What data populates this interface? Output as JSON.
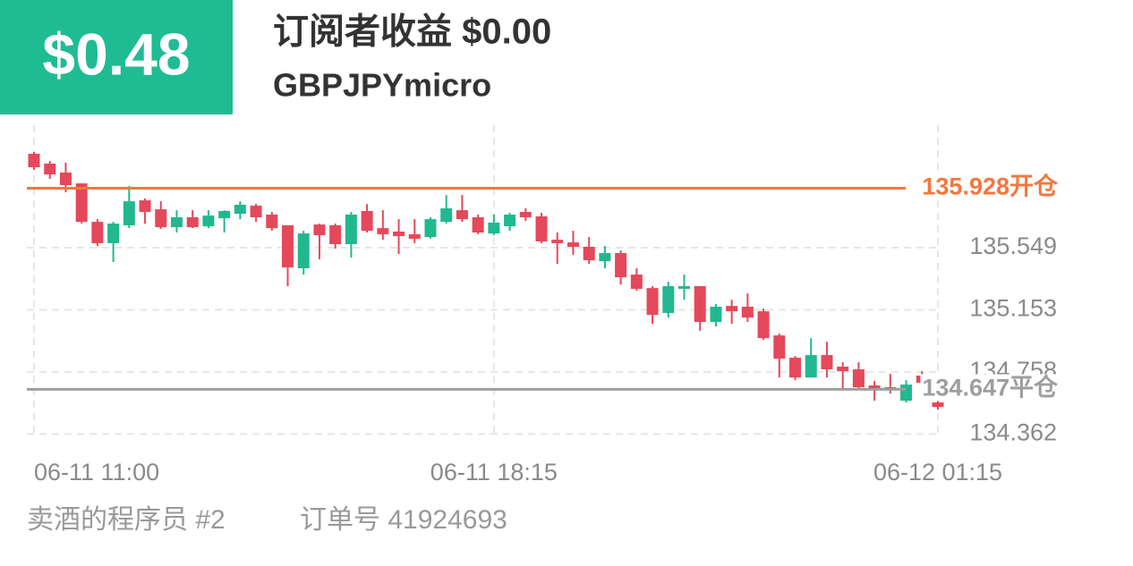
{
  "header": {
    "badge": "$0.48",
    "title": "订阅者收益 $0.00",
    "symbol": "GBPJPYmicro"
  },
  "chart_data": {
    "type": "candlestick",
    "up_color": "#22b88f",
    "down_color": "#e5485a",
    "categories": [
      "06-11 11:00",
      null,
      null,
      null,
      null,
      null,
      null,
      null,
      null,
      null,
      null,
      null,
      null,
      null,
      null,
      null,
      null,
      null,
      null,
      null,
      null,
      null,
      null,
      null,
      null,
      null,
      null,
      null,
      null,
      "06-11 18:15",
      null,
      null,
      null,
      null,
      null,
      null,
      null,
      null,
      null,
      null,
      null,
      null,
      null,
      null,
      null,
      null,
      null,
      null,
      null,
      null,
      null,
      null,
      null,
      null,
      null,
      null,
      null,
      "06-12 01:15"
    ],
    "candles": [
      [
        136.148,
        136.159,
        136.045,
        136.062
      ],
      [
        136.085,
        136.102,
        135.988,
        136.016
      ],
      [
        136.028,
        136.091,
        135.902,
        135.948
      ],
      [
        135.959,
        135.959,
        135.703,
        135.714
      ],
      [
        135.714,
        135.731,
        135.56,
        135.578
      ],
      [
        135.578,
        135.714,
        135.458,
        135.703
      ],
      [
        135.692,
        135.942,
        135.674,
        135.845
      ],
      [
        135.851,
        135.863,
        135.703,
        135.777
      ],
      [
        135.794,
        135.845,
        135.669,
        135.68
      ],
      [
        135.68,
        135.788,
        135.646,
        135.743
      ],
      [
        135.743,
        135.788,
        135.674,
        135.68
      ],
      [
        135.686,
        135.788,
        135.674,
        135.754
      ],
      [
        135.737,
        135.788,
        135.646,
        135.783
      ],
      [
        135.766,
        135.845,
        135.731,
        135.823
      ],
      [
        135.817,
        135.828,
        135.714,
        135.743
      ],
      [
        135.76,
        135.777,
        135.657,
        135.674
      ],
      [
        135.692,
        135.692,
        135.304,
        135.424
      ],
      [
        135.418,
        135.657,
        135.378,
        135.64
      ],
      [
        135.697,
        135.703,
        135.475,
        135.629
      ],
      [
        135.692,
        135.703,
        135.543,
        135.572
      ],
      [
        135.572,
        135.777,
        135.486,
        135.76
      ],
      [
        135.783,
        135.828,
        135.646,
        135.657
      ],
      [
        135.674,
        135.788,
        135.6,
        135.635
      ],
      [
        135.652,
        135.731,
        135.509,
        135.623
      ],
      [
        135.635,
        135.731,
        135.578,
        135.606
      ],
      [
        135.617,
        135.743,
        135.606,
        135.731
      ],
      [
        135.714,
        135.885,
        135.703,
        135.8
      ],
      [
        135.788,
        135.885,
        135.714,
        135.731
      ],
      [
        135.743,
        135.76,
        135.635,
        135.646
      ],
      [
        135.64,
        135.76,
        135.629,
        135.709
      ],
      [
        135.686,
        135.771,
        135.657,
        135.76
      ],
      [
        135.777,
        135.8,
        135.72,
        135.743
      ],
      [
        135.749,
        135.771,
        135.578,
        135.589
      ],
      [
        135.6,
        135.646,
        135.446,
        135.578
      ],
      [
        135.583,
        135.657,
        135.503,
        135.555
      ],
      [
        135.555,
        135.617,
        135.446,
        135.469
      ],
      [
        135.463,
        135.56,
        135.418,
        135.515
      ],
      [
        135.515,
        135.532,
        135.315,
        135.361
      ],
      [
        135.378,
        135.418,
        135.275,
        135.287
      ],
      [
        135.292,
        135.304,
        135.064,
        135.121
      ],
      [
        135.133,
        135.332,
        135.104,
        135.304
      ],
      [
        135.287,
        135.378,
        135.218,
        135.304
      ],
      [
        135.304,
        135.304,
        135.019,
        135.076
      ],
      [
        135.076,
        135.19,
        135.047,
        135.173
      ],
      [
        135.178,
        135.218,
        135.064,
        135.144
      ],
      [
        135.173,
        135.258,
        135.076,
        135.104
      ],
      [
        135.144,
        135.161,
        134.962,
        134.973
      ],
      [
        134.99,
        135.002,
        134.722,
        134.842
      ],
      [
        134.848,
        134.859,
        134.705,
        134.722
      ],
      [
        134.722,
        134.973,
        134.722,
        134.865
      ],
      [
        134.865,
        134.95,
        134.722,
        134.774
      ],
      [
        134.791,
        134.819,
        134.637,
        134.762
      ],
      [
        134.774,
        134.819,
        134.648,
        134.66
      ],
      [
        134.671,
        134.7,
        134.574,
        134.654
      ],
      [
        134.66,
        134.745,
        134.62,
        134.648
      ],
      [
        134.574,
        134.705,
        134.563,
        134.677
      ],
      [
        134.734,
        134.762,
        134.677,
        134.688
      ],
      [
        134.563,
        134.574,
        134.517,
        134.534
      ]
    ],
    "ylim": [
      134.347,
      136.33
    ],
    "yticks": [
      135.549,
      135.153,
      134.758,
      134.362
    ],
    "grid": true,
    "lines": [
      {
        "value": 135.928,
        "label": "135.928开仓",
        "color": "#f4773d"
      },
      {
        "value": 134.647,
        "label": "134.647平仓",
        "color": "#9e9e9e"
      }
    ]
  },
  "footer": {
    "author": "卖酒的程序员 #2",
    "order": "订单号 41924693"
  }
}
